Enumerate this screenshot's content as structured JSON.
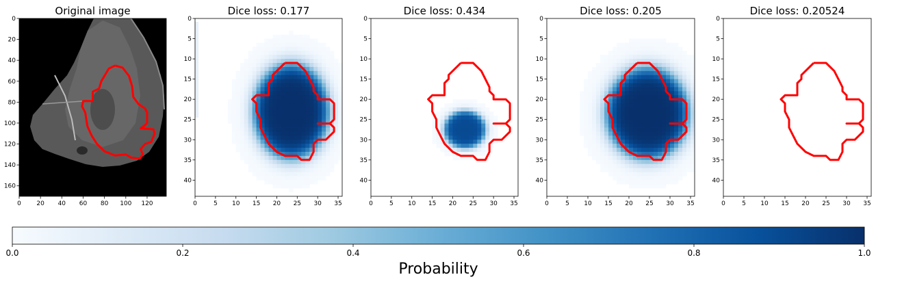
{
  "colors": {
    "contour": "#ff0000",
    "cmap_low": "#f7fbff",
    "cmap_high": "#08306b",
    "image_background": "#000000"
  },
  "chart_data": [
    {
      "type": "heatmap",
      "title": "Original image",
      "content": "grayscale MRI brain scan with tumor outline",
      "xlim": [
        0,
        138
      ],
      "ylim": [
        170,
        0
      ],
      "xticks": [
        "0",
        "20",
        "40",
        "60",
        "80",
        "100",
        "120"
      ],
      "yticks": [
        "0",
        "20",
        "40",
        "60",
        "80",
        "100",
        "120",
        "140",
        "160"
      ],
      "contour": [
        [
          90,
          45
        ],
        [
          97,
          47
        ],
        [
          103,
          55
        ],
        [
          106,
          65
        ],
        [
          107,
          75
        ],
        [
          112,
          82
        ],
        [
          118,
          86
        ],
        [
          120,
          90
        ],
        [
          120,
          100
        ],
        [
          117,
          103
        ],
        [
          114,
          105
        ],
        [
          126,
          106
        ],
        [
          127,
          110
        ],
        [
          124,
          118
        ],
        [
          118,
          120
        ],
        [
          114,
          125
        ],
        [
          116,
          130
        ],
        [
          113,
          134
        ],
        [
          105,
          133
        ],
        [
          100,
          130
        ],
        [
          90,
          131
        ],
        [
          80,
          127
        ],
        [
          73,
          120
        ],
        [
          68,
          112
        ],
        [
          64,
          103
        ],
        [
          63,
          97
        ],
        [
          62,
          90
        ],
        [
          59,
          84
        ],
        [
          60,
          79
        ],
        [
          69,
          79
        ],
        [
          69,
          70
        ],
        [
          75,
          67
        ],
        [
          77,
          60
        ],
        [
          80,
          55
        ],
        [
          84,
          48
        ],
        [
          90,
          45
        ]
      ]
    },
    {
      "type": "heatmap",
      "title": "Dice loss: 0.177",
      "xlim": [
        0,
        36
      ],
      "ylim": [
        44,
        0
      ],
      "xticks": [
        "0",
        "5",
        "10",
        "15",
        "20",
        "25",
        "30",
        "35"
      ],
      "yticks": [
        "0",
        "5",
        "10",
        "15",
        "20",
        "25",
        "30",
        "35",
        "40"
      ],
      "blob": {
        "center": [
          23.5,
          23
        ],
        "radius": [
          10.5,
          13.5
        ],
        "peak": 1.0
      },
      "contour": [
        [
          22,
          11
        ],
        [
          25,
          11
        ],
        [
          27,
          13
        ],
        [
          28,
          15
        ],
        [
          29,
          17
        ],
        [
          29,
          18
        ],
        [
          30,
          19
        ],
        [
          30,
          20
        ],
        [
          33,
          20
        ],
        [
          34,
          21
        ],
        [
          34,
          25
        ],
        [
          33,
          26
        ],
        [
          30,
          26
        ],
        [
          33,
          26
        ],
        [
          34,
          27
        ],
        [
          34,
          28
        ],
        [
          33,
          29
        ],
        [
          32,
          30
        ],
        [
          30,
          30
        ],
        [
          29,
          31
        ],
        [
          29,
          33
        ],
        [
          28,
          35
        ],
        [
          26,
          35
        ],
        [
          25,
          34
        ],
        [
          22,
          34
        ],
        [
          20,
          33
        ],
        [
          18,
          31
        ],
        [
          17,
          29
        ],
        [
          16,
          27
        ],
        [
          16,
          25
        ],
        [
          15,
          23
        ],
        [
          15,
          21
        ],
        [
          14,
          20
        ],
        [
          15,
          19
        ],
        [
          18,
          19
        ],
        [
          18,
          16
        ],
        [
          19,
          15
        ],
        [
          19,
          14
        ],
        [
          20,
          13
        ],
        [
          22,
          11
        ]
      ]
    },
    {
      "type": "heatmap",
      "title": "Dice loss: 0.434",
      "xlim": [
        0,
        36
      ],
      "ylim": [
        44,
        0
      ],
      "xticks": [
        "0",
        "5",
        "10",
        "15",
        "20",
        "25",
        "30",
        "35"
      ],
      "yticks": [
        "0",
        "5",
        "10",
        "15",
        "20",
        "25",
        "30",
        "35",
        "40"
      ],
      "blob": {
        "center": [
          23,
          27.5
        ],
        "radius": [
          5.8,
          5.3
        ],
        "peak": 0.9
      },
      "contour": [
        [
          22,
          11
        ],
        [
          25,
          11
        ],
        [
          27,
          13
        ],
        [
          28,
          15
        ],
        [
          29,
          17
        ],
        [
          29,
          18
        ],
        [
          30,
          19
        ],
        [
          30,
          20
        ],
        [
          33,
          20
        ],
        [
          34,
          21
        ],
        [
          34,
          25
        ],
        [
          33,
          26
        ],
        [
          30,
          26
        ],
        [
          33,
          26
        ],
        [
          34,
          27
        ],
        [
          34,
          28
        ],
        [
          33,
          29
        ],
        [
          32,
          30
        ],
        [
          30,
          30
        ],
        [
          29,
          31
        ],
        [
          29,
          33
        ],
        [
          28,
          35
        ],
        [
          26,
          35
        ],
        [
          25,
          34
        ],
        [
          22,
          34
        ],
        [
          20,
          33
        ],
        [
          18,
          31
        ],
        [
          17,
          29
        ],
        [
          16,
          27
        ],
        [
          16,
          25
        ],
        [
          15,
          23
        ],
        [
          15,
          21
        ],
        [
          14,
          20
        ],
        [
          15,
          19
        ],
        [
          18,
          19
        ],
        [
          18,
          16
        ],
        [
          19,
          15
        ],
        [
          19,
          14
        ],
        [
          20,
          13
        ],
        [
          22,
          11
        ]
      ]
    },
    {
      "type": "heatmap",
      "title": "Dice loss: 0.205",
      "xlim": [
        0,
        36
      ],
      "ylim": [
        44,
        0
      ],
      "xticks": [
        "0",
        "5",
        "10",
        "15",
        "20",
        "25",
        "30",
        "35"
      ],
      "yticks": [
        "0",
        "5",
        "10",
        "15",
        "20",
        "25",
        "30",
        "35",
        "40"
      ],
      "blob": {
        "center": [
          24.5,
          23.5
        ],
        "radius": [
          11.5,
          13
        ],
        "peak": 1.0
      },
      "contour": [
        [
          22,
          11
        ],
        [
          25,
          11
        ],
        [
          27,
          13
        ],
        [
          28,
          15
        ],
        [
          29,
          17
        ],
        [
          29,
          18
        ],
        [
          30,
          19
        ],
        [
          30,
          20
        ],
        [
          33,
          20
        ],
        [
          34,
          21
        ],
        [
          34,
          25
        ],
        [
          33,
          26
        ],
        [
          30,
          26
        ],
        [
          33,
          26
        ],
        [
          34,
          27
        ],
        [
          34,
          28
        ],
        [
          33,
          29
        ],
        [
          32,
          30
        ],
        [
          30,
          30
        ],
        [
          29,
          31
        ],
        [
          29,
          33
        ],
        [
          28,
          35
        ],
        [
          26,
          35
        ],
        [
          25,
          34
        ],
        [
          22,
          34
        ],
        [
          20,
          33
        ],
        [
          18,
          31
        ],
        [
          17,
          29
        ],
        [
          16,
          27
        ],
        [
          16,
          25
        ],
        [
          15,
          23
        ],
        [
          15,
          21
        ],
        [
          14,
          20
        ],
        [
          15,
          19
        ],
        [
          18,
          19
        ],
        [
          18,
          16
        ],
        [
          19,
          15
        ],
        [
          19,
          14
        ],
        [
          20,
          13
        ],
        [
          22,
          11
        ]
      ]
    },
    {
      "type": "heatmap",
      "title": "Dice loss: 0.20524",
      "xlim": [
        0,
        36
      ],
      "ylim": [
        44,
        0
      ],
      "xticks": [
        "0",
        "5",
        "10",
        "15",
        "20",
        "25",
        "30",
        "35"
      ],
      "yticks": [
        "0",
        "5",
        "10",
        "15",
        "20",
        "25",
        "30",
        "35",
        "40"
      ],
      "blob": {
        "center": [
          24,
          23
        ],
        "radius": [
          10,
          12
        ],
        "peak": 0.0
      },
      "contour": [
        [
          22,
          11
        ],
        [
          25,
          11
        ],
        [
          27,
          13
        ],
        [
          28,
          15
        ],
        [
          29,
          17
        ],
        [
          29,
          18
        ],
        [
          30,
          19
        ],
        [
          30,
          20
        ],
        [
          33,
          20
        ],
        [
          34,
          21
        ],
        [
          34,
          25
        ],
        [
          33,
          26
        ],
        [
          30,
          26
        ],
        [
          33,
          26
        ],
        [
          34,
          27
        ],
        [
          34,
          28
        ],
        [
          33,
          29
        ],
        [
          32,
          30
        ],
        [
          30,
          30
        ],
        [
          29,
          31
        ],
        [
          29,
          33
        ],
        [
          28,
          35
        ],
        [
          26,
          35
        ],
        [
          25,
          34
        ],
        [
          22,
          34
        ],
        [
          20,
          33
        ],
        [
          18,
          31
        ],
        [
          17,
          29
        ],
        [
          16,
          27
        ],
        [
          16,
          25
        ],
        [
          15,
          23
        ],
        [
          15,
          21
        ],
        [
          14,
          20
        ],
        [
          15,
          19
        ],
        [
          18,
          19
        ],
        [
          18,
          16
        ],
        [
          19,
          15
        ],
        [
          19,
          14
        ],
        [
          20,
          13
        ],
        [
          22,
          11
        ]
      ]
    }
  ],
  "colorbar": {
    "label": "Probability",
    "range": [
      0,
      1
    ],
    "ticks": [
      "0.0",
      "0.2",
      "0.4",
      "0.6",
      "0.8",
      "1.0"
    ]
  }
}
